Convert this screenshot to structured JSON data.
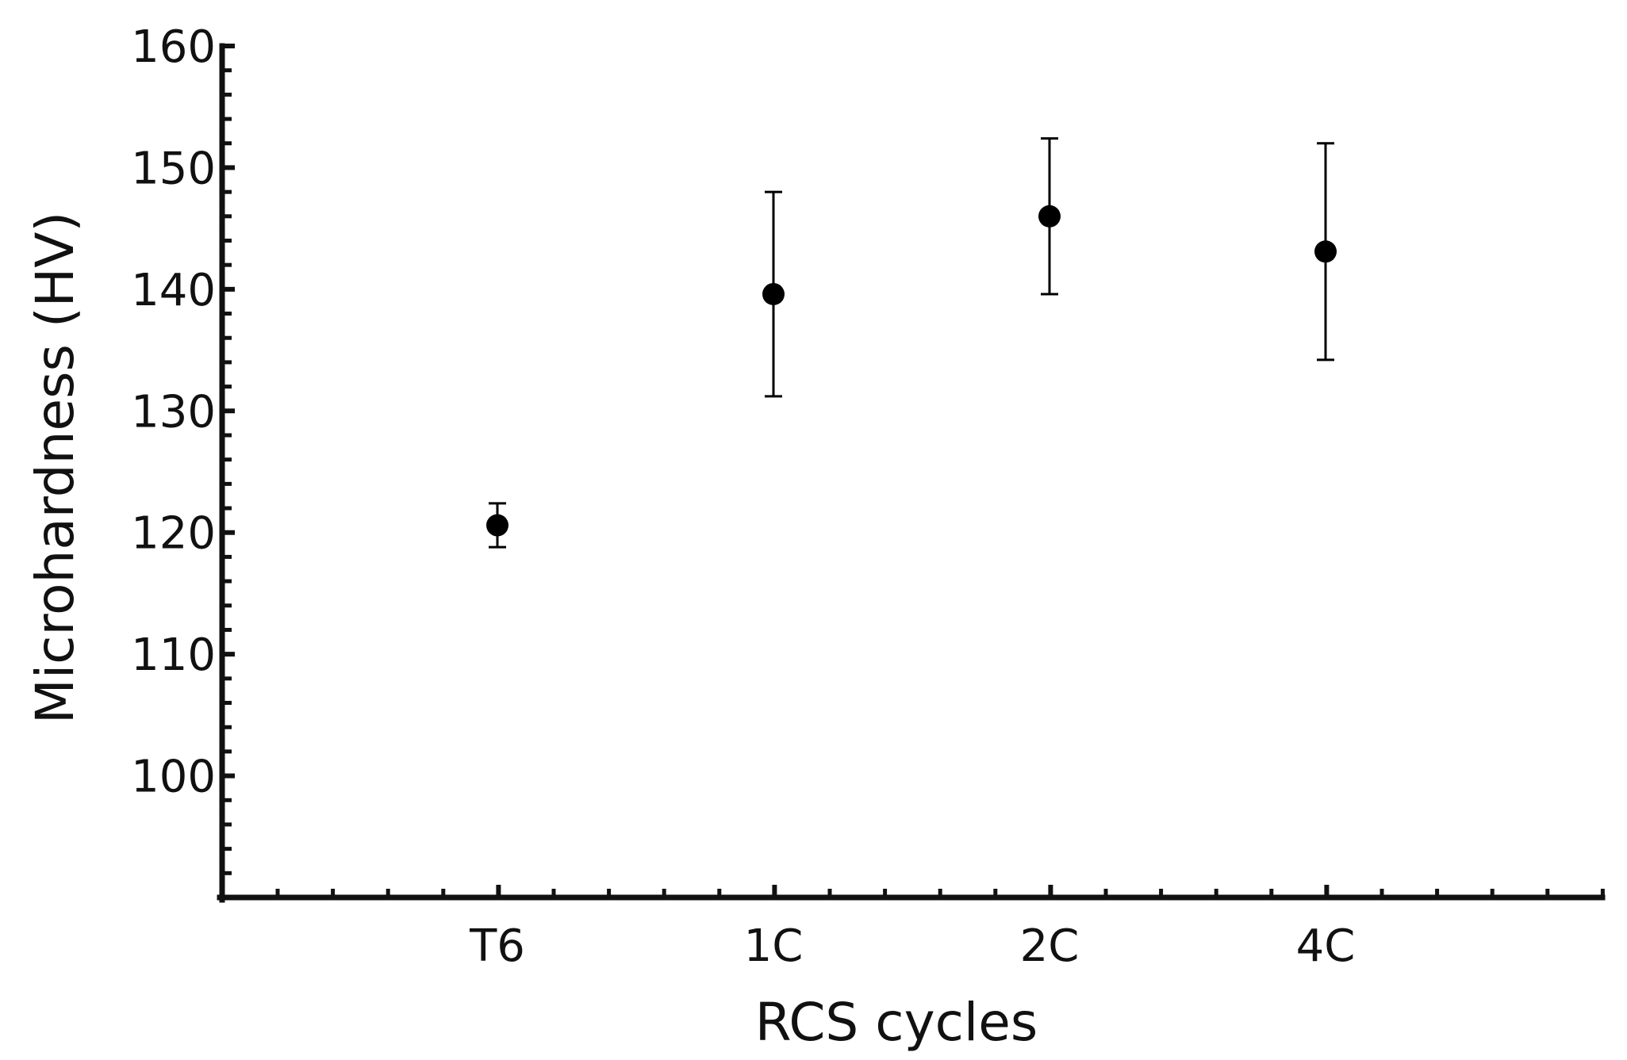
{
  "chart_data": {
    "type": "scatter",
    "title": "",
    "xlabel": "RCS cycles",
    "ylabel": "Microhardness (HV)",
    "categories": [
      "T6",
      "1C",
      "2C",
      "4C"
    ],
    "series": [
      {
        "name": "Microhardness",
        "values": [
          120.6,
          139.6,
          146.0,
          143.1
        ],
        "error_low": [
          1.8,
          8.4,
          6.4,
          8.9
        ],
        "error_high": [
          1.8,
          8.4,
          6.4,
          8.9
        ]
      }
    ],
    "ylim": [
      90,
      160
    ],
    "yticks": [
      100,
      110,
      120,
      130,
      140,
      150,
      160
    ],
    "yticks_minor_step": 2,
    "grid": false,
    "legend": "none",
    "colors": {
      "marker": "#000000",
      "axis": "#111111"
    }
  }
}
